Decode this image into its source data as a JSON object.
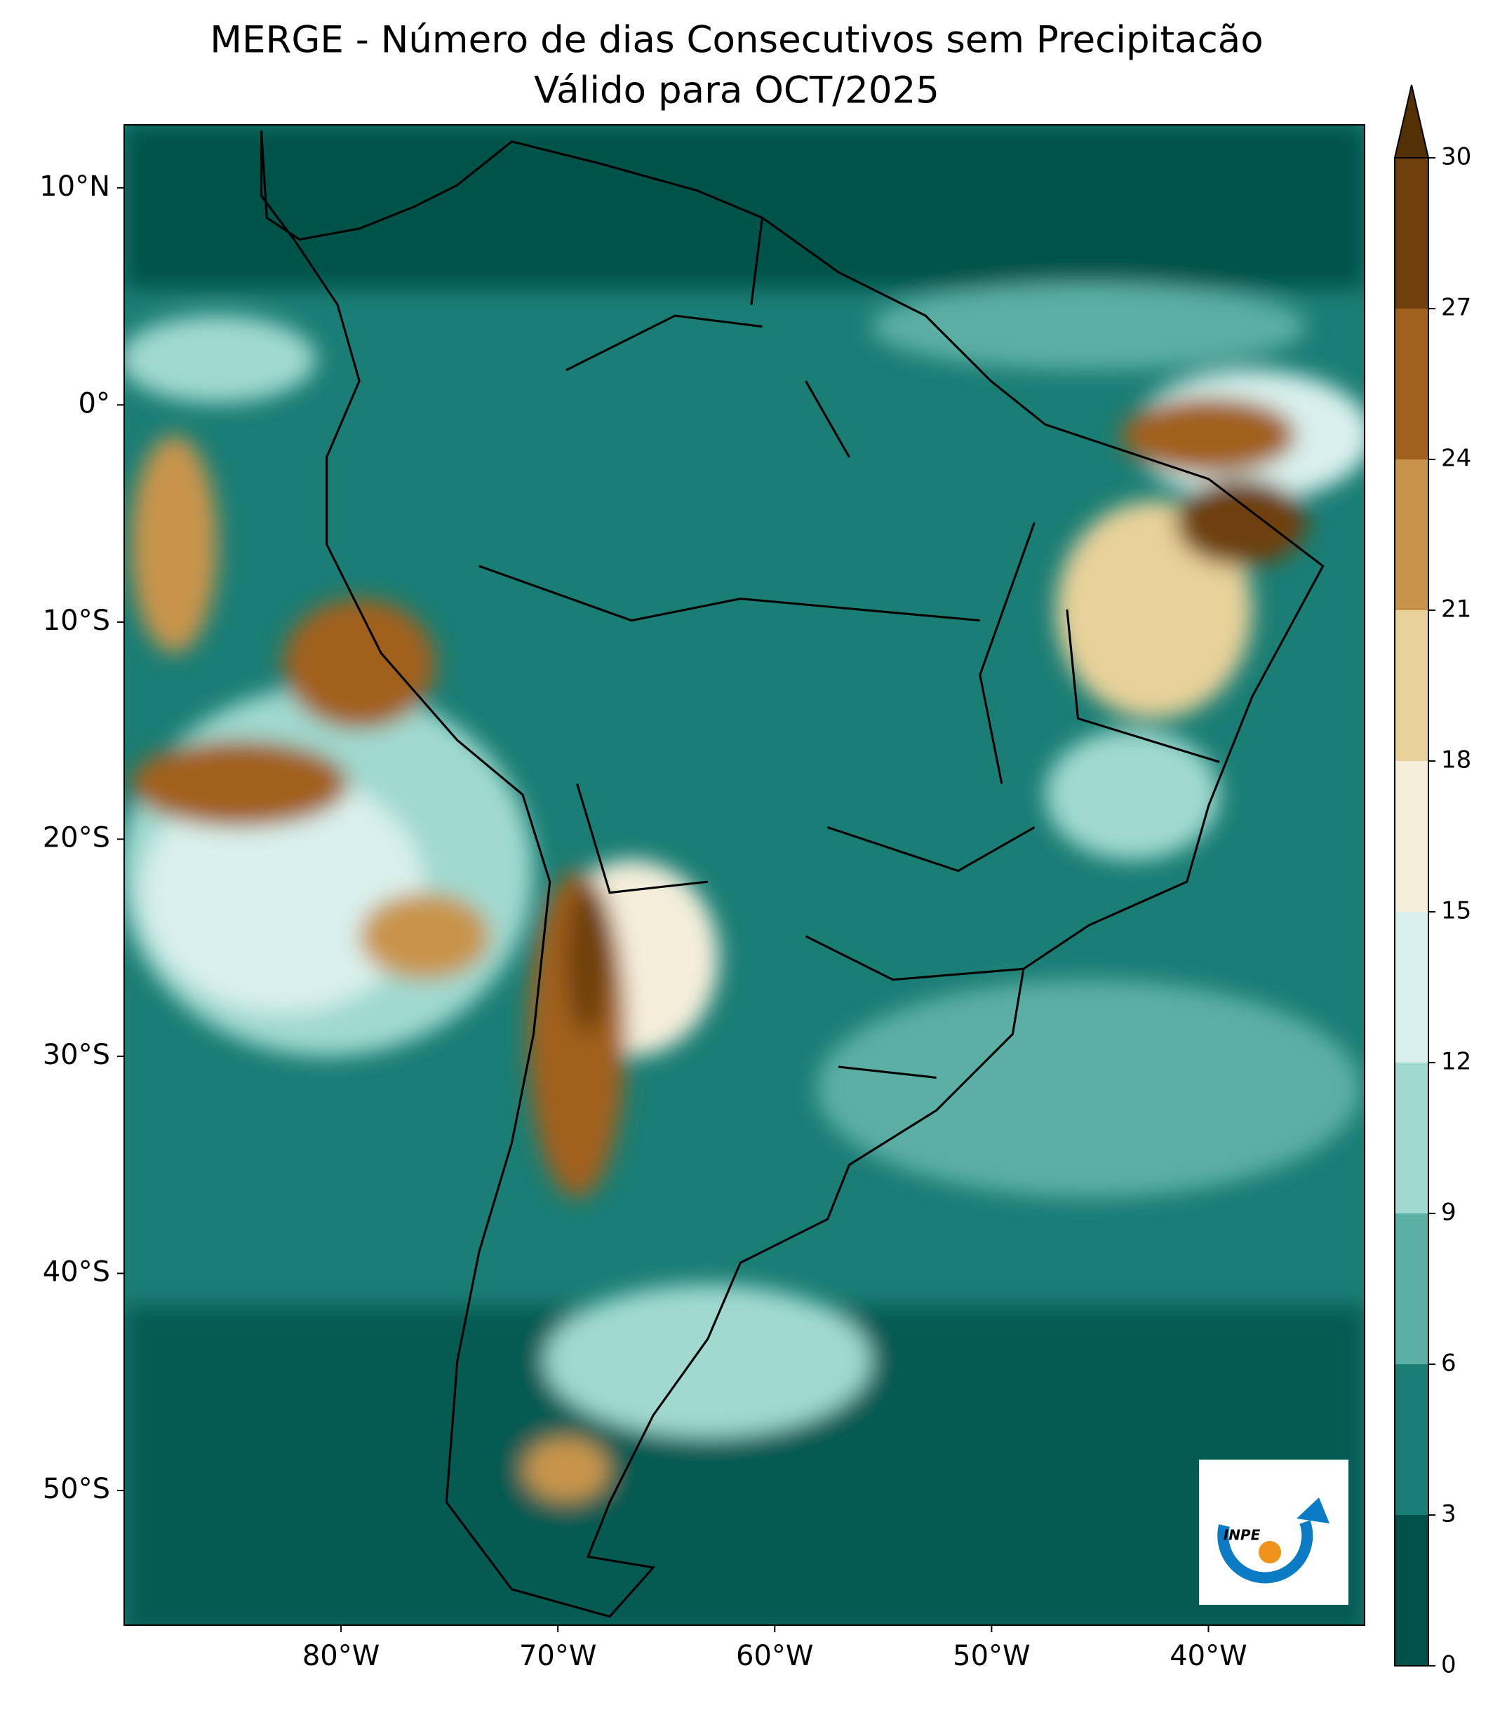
{
  "chart_data": {
    "type": "contour_map",
    "title": "MERGE - Número de dias Consecutivos sem Precipitacão",
    "subtitle": "Válido para OCT/2025",
    "xlim": [
      -90,
      -32.8
    ],
    "ylim": [
      -56.2,
      12.9
    ],
    "xticks": [
      {
        "value": -80,
        "label": "80°W"
      },
      {
        "value": -70,
        "label": "70°W"
      },
      {
        "value": -60,
        "label": "60°W"
      },
      {
        "value": -50,
        "label": "50°W"
      },
      {
        "value": -40,
        "label": "40°W"
      }
    ],
    "yticks": [
      {
        "value": 10,
        "label": "10°N"
      },
      {
        "value": 0,
        "label": "0°"
      },
      {
        "value": -10,
        "label": "10°S"
      },
      {
        "value": -20,
        "label": "20°S"
      },
      {
        "value": -30,
        "label": "30°S"
      },
      {
        "value": -40,
        "label": "40°S"
      },
      {
        "value": -50,
        "label": "50°S"
      }
    ],
    "colorbar": {
      "levels": [
        0,
        3,
        6,
        9,
        12,
        15,
        18,
        21,
        24,
        27,
        30
      ],
      "colors": [
        "#01524a",
        "#1b7e75",
        "#5cafa4",
        "#a0d9cf",
        "#d9f0ec",
        "#f5eedb",
        "#e9d19a",
        "#c8944b",
        "#a1601d",
        "#6e400c"
      ],
      "extend_color": "#543005"
    },
    "logo_text": "INPE"
  }
}
